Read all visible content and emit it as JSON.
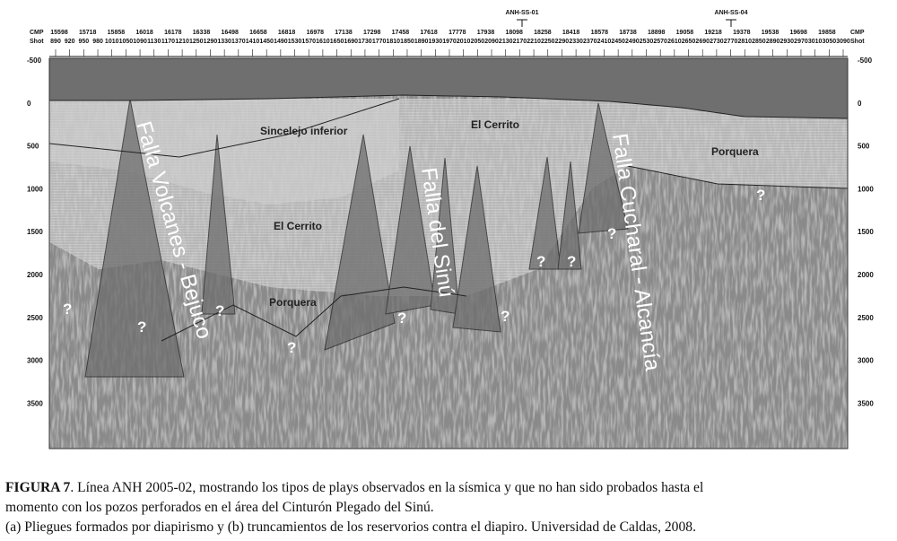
{
  "header": {
    "cmp_label": "CMP",
    "shot_label": "Shot",
    "cmp": [
      "15598",
      "15718",
      "15858",
      "16018",
      "16178",
      "16338",
      "16498",
      "16658",
      "16818",
      "16978",
      "17138",
      "17298",
      "17458",
      "17618",
      "17778",
      "17938",
      "18098",
      "18258",
      "18418",
      "18578",
      "18738",
      "18898",
      "19058",
      "19218",
      "19378",
      "19538",
      "19698",
      "19858"
    ],
    "shot": [
      "890",
      "920",
      "950",
      "980",
      "1010",
      "1050",
      "1090",
      "1130",
      "1170",
      "1210",
      "1250",
      "1290",
      "1330",
      "1370",
      "1410",
      "1450",
      "1490",
      "1530",
      "1570",
      "1610",
      "1650",
      "1690",
      "1730",
      "1770",
      "1810",
      "1850",
      "1890",
      "1930",
      "1970",
      "2010",
      "2050",
      "2090",
      "2130",
      "2170",
      "2210",
      "2250",
      "2290",
      "2330",
      "2370",
      "2410",
      "2450",
      "2490",
      "2530",
      "2570",
      "2610",
      "2650",
      "2690",
      "2730",
      "2770",
      "2810",
      "2850",
      "2890",
      "2930",
      "2970",
      "3010",
      "3050",
      "3090"
    ],
    "wells": [
      "ANH-SS-01",
      "ANH-SS-04"
    ]
  },
  "depth": [
    "-500",
    "0",
    "500",
    "1000",
    "1500",
    "2000",
    "2500",
    "3000",
    "3500"
  ],
  "formations": {
    "sincelejo": "Sincelejo inferior",
    "cerrito_top": "El Cerrito",
    "cerrito_mid": "El Cerrito",
    "porquera_low": "Porquera",
    "porquera_right": "Porquera"
  },
  "faults": {
    "volcanes": "Falla Volcanes - Bejuco",
    "sinu": "Falla del Sinú",
    "cucharal": "Falla Cucharal - Alcancía"
  },
  "unknown": "?",
  "caption": {
    "label": "FIGURA 7",
    "line1": ". Línea ANH 2005-02, mostrando los tipos de plays observados en la sísmica y que no han sido probados hasta el",
    "line2": "momento con los pozos perforados en el área del Cinturón Plegado del Sinú.",
    "line3": "(a) Pliegues formados por diapirismo y (b) truncamientos de los reservorios contra el diapiro. Universidad de Caldas, 2008."
  }
}
